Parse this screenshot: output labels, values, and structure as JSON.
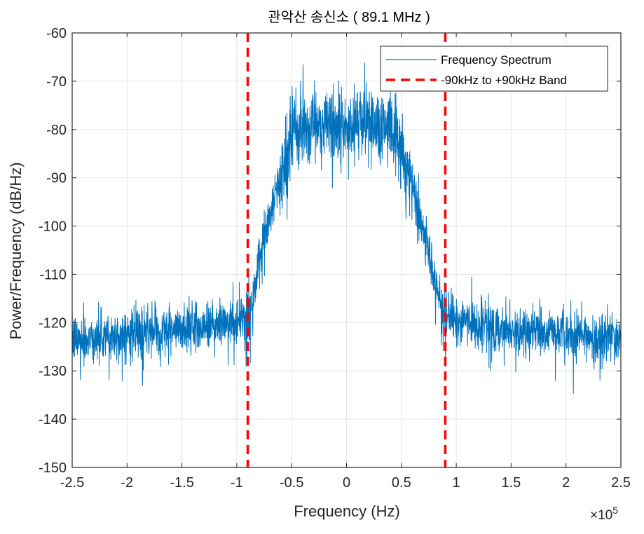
{
  "chart_data": {
    "type": "line",
    "title": "관악산 송신소 ( 89.1 MHz )",
    "xlabel": "Frequency (Hz)",
    "ylabel": "Power/Frequency (dB/Hz)",
    "x_exponent_label": {
      "base": "×10",
      "exp": "5"
    },
    "xlim": [
      -2.5,
      2.5
    ],
    "ylim": [
      -150,
      -60
    ],
    "x_scale_note": "x values in units of 1e5 Hz",
    "xticks": [
      -2.5,
      -2,
      -1.5,
      -1,
      -0.5,
      0,
      0.5,
      1,
      1.5,
      2,
      2.5
    ],
    "xtick_labels": [
      "-2.5",
      "-2",
      "-1.5",
      "-1",
      "-0.5",
      "0",
      "0.5",
      "1",
      "1.5",
      "2",
      "2.5"
    ],
    "yticks": [
      -150,
      -140,
      -130,
      -120,
      -110,
      -100,
      -90,
      -80,
      -70,
      -60
    ],
    "ytick_labels": [
      "-150",
      "-140",
      "-130",
      "-120",
      "-110",
      "-100",
      "-90",
      "-80",
      "-70",
      "-60"
    ],
    "grid": true,
    "legend": {
      "position": "top-right",
      "entries": [
        "Frequency Spectrum",
        "-90kHz to +90kHz Band"
      ]
    },
    "series": [
      {
        "name": "Frequency Spectrum",
        "color": "#0072BD",
        "style": "noisy-line",
        "envelope_x": [
          -2.5,
          -2.0,
          -1.5,
          -1.0,
          -0.9,
          -0.85,
          -0.8,
          -0.75,
          -0.7,
          -0.6,
          -0.5,
          -0.4,
          -0.2,
          0,
          0.2,
          0.4,
          0.5,
          0.6,
          0.7,
          0.75,
          0.8,
          0.85,
          0.9,
          1.0,
          1.5,
          2.0,
          2.5
        ],
        "envelope_y": [
          -123.5,
          -122.5,
          -121.5,
          -119.5,
          -118,
          -115,
          -109,
          -103,
          -98,
          -90,
          -81,
          -79,
          -78.5,
          -79,
          -78.5,
          -79,
          -84,
          -92,
          -101,
          -106,
          -111,
          -115,
          -118,
          -119.5,
          -121.5,
          -122.5,
          -123.5
        ],
        "noise_amplitude_db": 2.5,
        "dip_depth_db": 11
      },
      {
        "name": "-90kHz to +90kHz Band",
        "color": "#FF0000",
        "style": "dashed-vertical",
        "x": [
          -0.9,
          0.9
        ]
      }
    ]
  }
}
